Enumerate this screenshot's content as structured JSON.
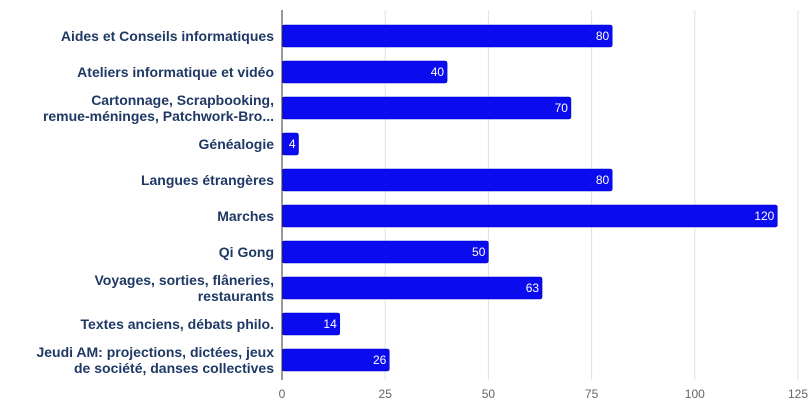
{
  "chart_data": {
    "type": "bar",
    "orientation": "horizontal",
    "categories": [
      [
        "Aides et Conseils informatiques"
      ],
      [
        "Ateliers informatique et vidéo"
      ],
      [
        "Cartonnage, Scrapbooking,",
        "remue-méninges, Patchwork-Bro..."
      ],
      [
        "Généalogie"
      ],
      [
        "Langues étrangères"
      ],
      [
        "Marches"
      ],
      [
        "Qi Gong"
      ],
      [
        "Voyages, sorties, flâneries,",
        "restaurants"
      ],
      [
        "Textes anciens, débats philo."
      ],
      [
        "Jeudi AM: projections, dictées, jeux",
        "de société, danses collectives"
      ]
    ],
    "values": [
      80,
      40,
      70,
      4,
      80,
      120,
      50,
      63,
      14,
      26
    ],
    "xlim": [
      0,
      125
    ],
    "xticks": [
      0,
      25,
      50,
      75,
      100,
      125
    ],
    "grid": true,
    "colors": {
      "bar": "#0b0bf0",
      "bar_edge": "#0000c8",
      "grid": "#e0e0e0",
      "axis": "#333333"
    }
  }
}
